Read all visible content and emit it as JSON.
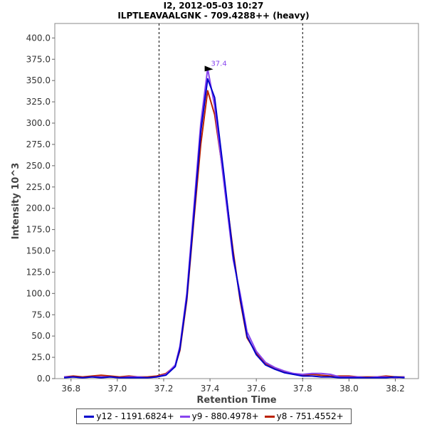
{
  "title": "I2, 2012-05-03 10:27",
  "subtitle": "ILPTLEAVAALGNK - 709.4288++ (heavy)",
  "chart_data": {
    "type": "line",
    "xlabel": "Retention Time",
    "ylabel": "Intensity 10^3",
    "xlim": [
      36.73,
      38.3
    ],
    "ylim": [
      0,
      417
    ],
    "xticks": [
      "36.8",
      "37.0",
      "37.2",
      "37.4",
      "37.6",
      "37.8",
      "38.0",
      "38.2"
    ],
    "yticks": [
      "0.0",
      "25.0",
      "50.0",
      "75.0",
      "100.0",
      "125.0",
      "150.0",
      "175.0",
      "200.0",
      "225.0",
      "250.0",
      "275.0",
      "300.0",
      "325.0",
      "350.0",
      "375.0",
      "400.0"
    ],
    "vlines": [
      37.18,
      37.8
    ],
    "peak_label": "37.4",
    "peak_x": 37.42,
    "peak_y": 364,
    "legend_position": "bottom",
    "x": [
      36.77,
      36.81,
      36.85,
      36.89,
      36.93,
      36.97,
      37.01,
      37.05,
      37.09,
      37.13,
      37.17,
      37.21,
      37.25,
      37.27,
      37.3,
      37.33,
      37.36,
      37.39,
      37.42,
      37.46,
      37.5,
      37.53,
      37.56,
      37.6,
      37.64,
      37.68,
      37.72,
      37.76,
      37.8,
      37.84,
      37.88,
      37.92,
      37.96,
      38.0,
      38.04,
      38.08,
      38.12,
      38.16,
      38.2,
      38.24
    ],
    "series": [
      {
        "name": "y12 - 1191.6824+",
        "color": "#0000cc",
        "values": [
          1,
          2,
          1,
          2,
          1,
          2,
          1,
          1,
          1,
          1,
          2,
          4,
          14,
          35,
          95,
          190,
          290,
          352,
          330,
          240,
          145,
          95,
          50,
          28,
          16,
          11,
          7,
          5,
          3,
          3,
          2,
          2,
          1,
          1,
          1,
          1,
          1,
          1,
          2,
          1
        ]
      },
      {
        "name": "y9 - 880.4978+",
        "color": "#8844ee",
        "values": [
          2,
          2,
          1,
          2,
          2,
          2,
          1,
          2,
          2,
          1,
          2,
          5,
          16,
          38,
          100,
          200,
          300,
          364,
          320,
          230,
          140,
          100,
          55,
          32,
          19,
          13,
          9,
          6,
          5,
          6,
          6,
          5,
          2,
          2,
          2,
          1,
          2,
          2,
          1,
          2
        ]
      },
      {
        "name": "y8 - 751.4552+",
        "color": "#bb2200",
        "values": [
          2,
          3,
          2,
          3,
          4,
          3,
          2,
          3,
          2,
          2,
          3,
          6,
          15,
          33,
          92,
          185,
          275,
          338,
          310,
          235,
          150,
          92,
          48,
          30,
          18,
          12,
          8,
          6,
          4,
          5,
          4,
          3,
          3,
          3,
          2,
          2,
          2,
          3,
          2,
          2
        ]
      }
    ]
  }
}
